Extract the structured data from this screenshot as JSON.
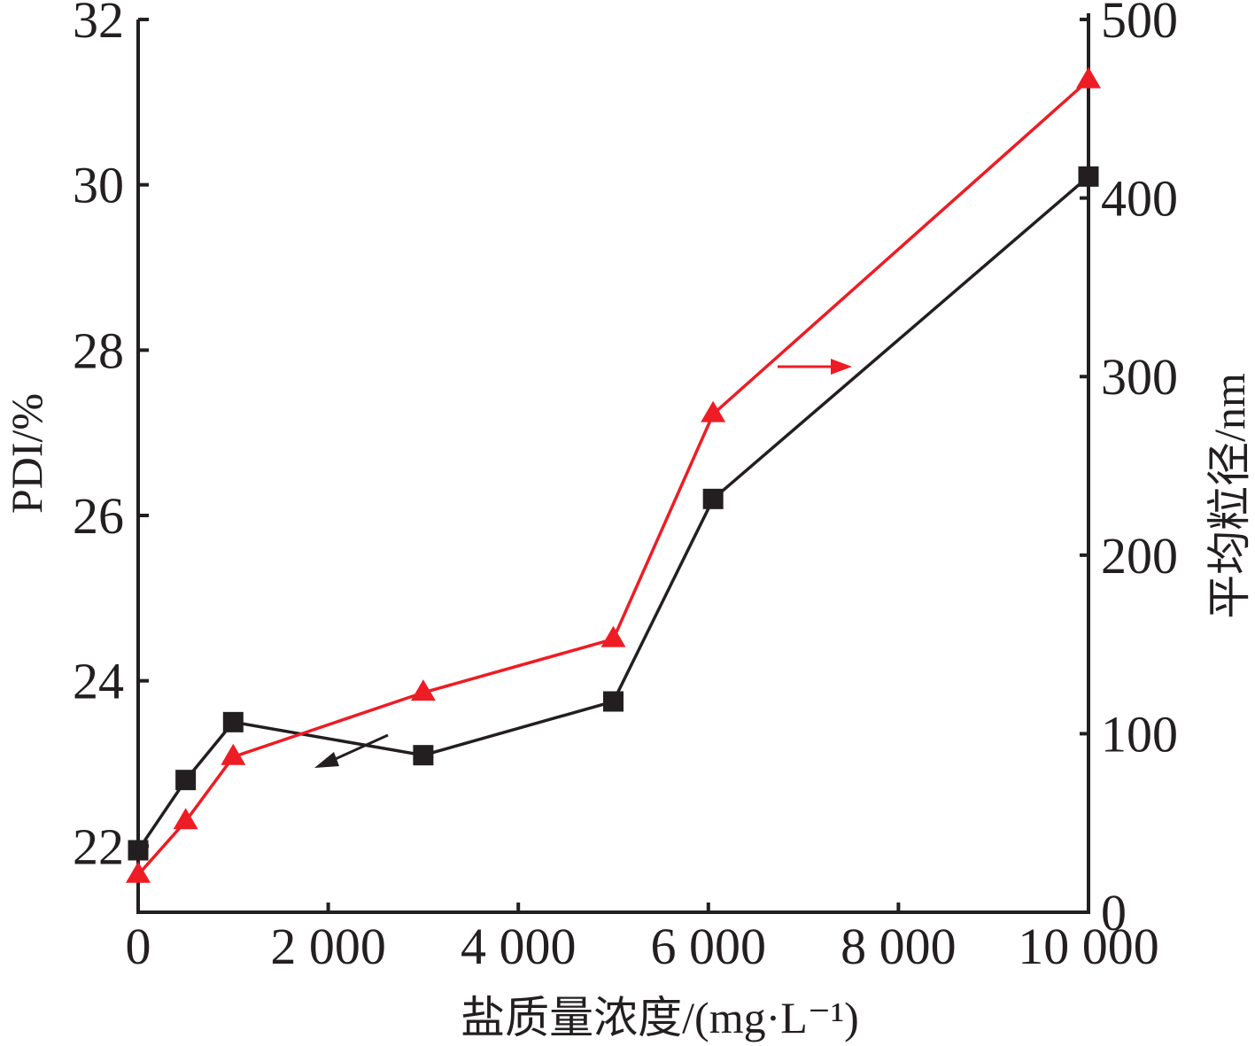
{
  "chart_data": {
    "type": "line",
    "xlabel": "盐质量浓度/(mg·L⁻¹)",
    "ylabel_left": "PDI/%",
    "ylabel_right": "平均粒径/nm",
    "xlim": [
      0,
      10000
    ],
    "ylim_left": [
      21.2,
      32
    ],
    "ylim_right": [
      0,
      500
    ],
    "x_ticks": [
      0,
      2000,
      4000,
      6000,
      8000,
      10000
    ],
    "x_tick_labels": [
      "0",
      "2 000",
      "4 000",
      "6 000",
      "8 000",
      "10 000"
    ],
    "y_left_ticks": [
      22,
      24,
      26,
      28,
      30,
      32
    ],
    "y_left_tick_labels": [
      "22",
      "24",
      "26",
      "28",
      "30",
      "32"
    ],
    "y_right_ticks": [
      0,
      100,
      200,
      300,
      400,
      500
    ],
    "y_right_tick_labels": [
      "0",
      "100",
      "200",
      "300",
      "400",
      "500"
    ],
    "series": [
      {
        "axis": "left",
        "marker": "square",
        "color": "#231f20",
        "x": [
          0,
          500,
          1000,
          3000,
          5000,
          6050,
          10000
        ],
        "y": [
          21.95,
          22.8,
          23.5,
          23.1,
          23.75,
          26.2,
          30.1
        ]
      },
      {
        "axis": "right",
        "marker": "triangle",
        "color": "#ee1c24",
        "x": [
          0,
          500,
          1000,
          3000,
          5000,
          6050,
          10000
        ],
        "y": [
          21,
          51,
          87,
          123,
          153,
          279,
          466
        ]
      }
    ],
    "annotations": [
      {
        "type": "arrow",
        "series": 0,
        "direction": "left",
        "color": "#231f20"
      },
      {
        "type": "arrow",
        "series": 1,
        "direction": "right",
        "color": "#ee1c24"
      }
    ]
  }
}
